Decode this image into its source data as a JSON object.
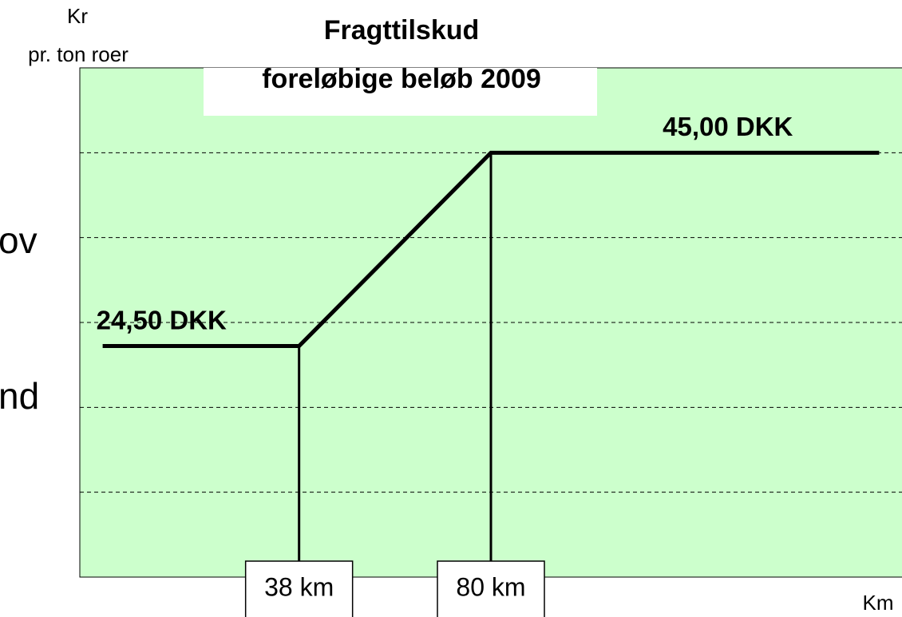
{
  "chart_data": {
    "type": "line",
    "title": [
      "Fragttilskud",
      "foreløbige beløb 2009"
    ],
    "y_label": [
      "Kr",
      "pr. ton roer"
    ],
    "x_label": "Km",
    "background_text": [
      "ov",
      "nd"
    ],
    "x": [
      -5,
      38,
      80,
      165
    ],
    "series": [
      {
        "color": "#000000",
        "values": [
          24.5,
          24.5,
          45,
          45
        ],
        "value_labels": [
          "24,50 DKK",
          null,
          null,
          "45,00 DKK"
        ]
      }
    ],
    "xlim": [
      -10,
      170
    ],
    "xticks": [
      {
        "value": 38,
        "label": "38 km"
      },
      {
        "value": 80,
        "label": "80 km"
      }
    ],
    "ylim": [
      0,
      54
    ],
    "yticks": [
      9,
      18,
      27,
      36,
      45
    ],
    "grid": true,
    "plot_color": "#ccffcc"
  }
}
